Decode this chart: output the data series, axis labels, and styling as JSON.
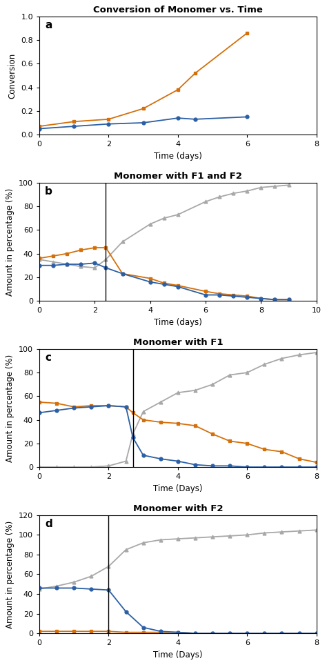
{
  "panel_a": {
    "title": "Conversion of Monomer vs. Time",
    "xlabel": "Time (days)",
    "ylabel": "Conversion",
    "xlim": [
      0,
      8
    ],
    "ylim": [
      0,
      1
    ],
    "yticks": [
      0,
      0.2,
      0.4,
      0.6,
      0.8,
      1.0
    ],
    "xticks": [
      0,
      2,
      4,
      6,
      8
    ],
    "orange": {
      "x": [
        0,
        1,
        2,
        3,
        4,
        4.5,
        6
      ],
      "y": [
        0.07,
        0.11,
        0.13,
        0.22,
        0.38,
        0.52,
        0.86
      ]
    },
    "blue": {
      "x": [
        0,
        1,
        2,
        3,
        4,
        4.5,
        6
      ],
      "y": [
        0.05,
        0.07,
        0.09,
        0.1,
        0.14,
        0.13,
        0.15
      ]
    }
  },
  "panel_b": {
    "title": "Monomer with F1 and F2",
    "xlabel": "Time (days)",
    "ylabel": "Amount in percentage (%)",
    "xlim": [
      0,
      10
    ],
    "ylim": [
      0,
      100
    ],
    "yticks": [
      0,
      20,
      40,
      60,
      80,
      100
    ],
    "xticks": [
      0,
      2,
      4,
      6,
      8,
      10
    ],
    "vline": 2.4,
    "orange": {
      "x": [
        0,
        0.5,
        1,
        1.5,
        2,
        2.4,
        3,
        4,
        4.5,
        5,
        6,
        6.5,
        7,
        7.5,
        8,
        8.5,
        9
      ],
      "y": [
        36,
        38,
        40,
        43,
        45,
        45,
        23,
        19,
        15,
        13,
        8,
        6,
        5,
        4,
        2,
        1,
        1
      ]
    },
    "blue": {
      "x": [
        0,
        0.5,
        1,
        1.5,
        2,
        2.4,
        3,
        4,
        4.5,
        5,
        6,
        6.5,
        7,
        7.5,
        8,
        8.5,
        9
      ],
      "y": [
        30,
        30,
        31,
        31,
        32,
        28,
        23,
        16,
        14,
        12,
        5,
        5,
        4,
        3,
        2,
        1,
        1
      ]
    },
    "gray": {
      "x": [
        0,
        0.5,
        1,
        1.5,
        2,
        2.4,
        3,
        4,
        4.5,
        5,
        6,
        6.5,
        7,
        7.5,
        8,
        8.5,
        9
      ],
      "y": [
        35,
        33,
        31,
        29,
        28,
        35,
        50,
        65,
        70,
        73,
        84,
        88,
        91,
        93,
        96,
        97,
        98
      ]
    }
  },
  "panel_c": {
    "title": "Monomer with F1",
    "xlabel": "Time (Days)",
    "ylabel": "Amount in percentage (%)",
    "xlim": [
      0,
      8
    ],
    "ylim": [
      0,
      100
    ],
    "yticks": [
      0,
      20,
      40,
      60,
      80,
      100
    ],
    "xticks": [
      0,
      2,
      4,
      6,
      8
    ],
    "vline": 2.7,
    "orange": {
      "x": [
        0,
        0.5,
        1,
        1.5,
        2,
        2.5,
        2.7,
        3,
        3.5,
        4,
        4.5,
        5,
        5.5,
        6,
        6.5,
        7,
        7.5,
        8
      ],
      "y": [
        55,
        54,
        51,
        52,
        52,
        51,
        46,
        40,
        38,
        37,
        35,
        28,
        22,
        20,
        15,
        13,
        7,
        4
      ]
    },
    "blue": {
      "x": [
        0,
        0.5,
        1,
        1.5,
        2,
        2.5,
        2.7,
        3,
        3.5,
        4,
        4.5,
        5,
        5.5,
        6,
        6.5,
        7,
        7.5,
        8
      ],
      "y": [
        46,
        48,
        50,
        51,
        52,
        51,
        25,
        10,
        7,
        5,
        2,
        1,
        1,
        0,
        0,
        0,
        0,
        0
      ]
    },
    "gray": {
      "x": [
        0,
        0.5,
        1,
        1.5,
        2,
        2.5,
        2.7,
        3,
        3.5,
        4,
        4.5,
        5,
        5.5,
        6,
        6.5,
        7,
        7.5,
        8
      ],
      "y": [
        0,
        0,
        0,
        0,
        1,
        5,
        28,
        47,
        55,
        63,
        65,
        70,
        78,
        80,
        87,
        92,
        95,
        97
      ]
    }
  },
  "panel_d": {
    "title": "Monomer with F2",
    "xlabel": "Time (Days)",
    "ylabel": "Amount in percentage (%)",
    "xlim": [
      0,
      8
    ],
    "ylim": [
      0,
      120
    ],
    "yticks": [
      0,
      20,
      40,
      60,
      80,
      100,
      120
    ],
    "xticks": [
      0,
      2,
      4,
      6,
      8
    ],
    "vline": 2.0,
    "orange": {
      "x": [
        0,
        0.5,
        1,
        1.5,
        2,
        2.5,
        3,
        3.5,
        4,
        4.5,
        5,
        5.5,
        6,
        6.5,
        7,
        7.5,
        8
      ],
      "y": [
        2,
        2,
        2,
        2,
        2,
        1,
        1,
        1,
        1,
        0,
        0,
        0,
        0,
        0,
        0,
        0,
        0
      ]
    },
    "blue": {
      "x": [
        0,
        0.5,
        1,
        1.5,
        2,
        2.5,
        3,
        3.5,
        4,
        4.5,
        5,
        5.5,
        6,
        6.5,
        7,
        7.5,
        8
      ],
      "y": [
        46,
        46,
        46,
        45,
        44,
        22,
        6,
        2,
        1,
        0,
        0,
        0,
        0,
        0,
        0,
        0,
        0
      ]
    },
    "gray": {
      "x": [
        0,
        0.5,
        1,
        1.5,
        2,
        2.5,
        3,
        3.5,
        4,
        4.5,
        5,
        5.5,
        6,
        6.5,
        7,
        7.5,
        8
      ],
      "y": [
        45,
        48,
        52,
        58,
        68,
        85,
        92,
        95,
        96,
        97,
        98,
        99,
        100,
        102,
        103,
        104,
        105
      ]
    }
  },
  "colors": {
    "orange": "#D4700A",
    "blue": "#2B5FA5",
    "gray": "#A8A8A8"
  }
}
